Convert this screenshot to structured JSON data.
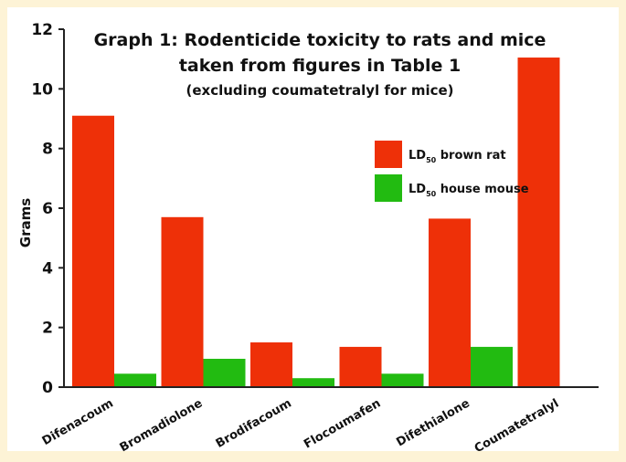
{
  "chart_data": {
    "type": "bar",
    "title_lines": [
      "Graph 1: Rodenticide toxicity to rats and mice",
      "taken from figures in Table 1",
      "(excluding coumatetralyl for mice)"
    ],
    "ylabel": "Grams",
    "xlabel": "",
    "ylim": [
      0,
      12
    ],
    "yticks": [
      "0",
      "2",
      "4",
      "6",
      "8",
      "10",
      "12"
    ],
    "categories": [
      "Difenacoum",
      "Bromadiolone",
      "Brodifacoum",
      "Flocoumafen",
      "Difethialone",
      "Coumatetralyl"
    ],
    "series": [
      {
        "name_main": "LD",
        "name_sub": "50",
        "name_rest": " brown rat",
        "color": "#ee3008",
        "values": [
          9.1,
          5.7,
          1.5,
          1.35,
          5.65,
          11.05
        ]
      },
      {
        "name_main": "LD",
        "name_sub": "50",
        "name_rest": " house mouse",
        "color": "#22bb11",
        "values": [
          0.45,
          0.95,
          0.3,
          0.45,
          1.35,
          null
        ]
      }
    ],
    "legend_position": "top-right",
    "grid": false
  }
}
